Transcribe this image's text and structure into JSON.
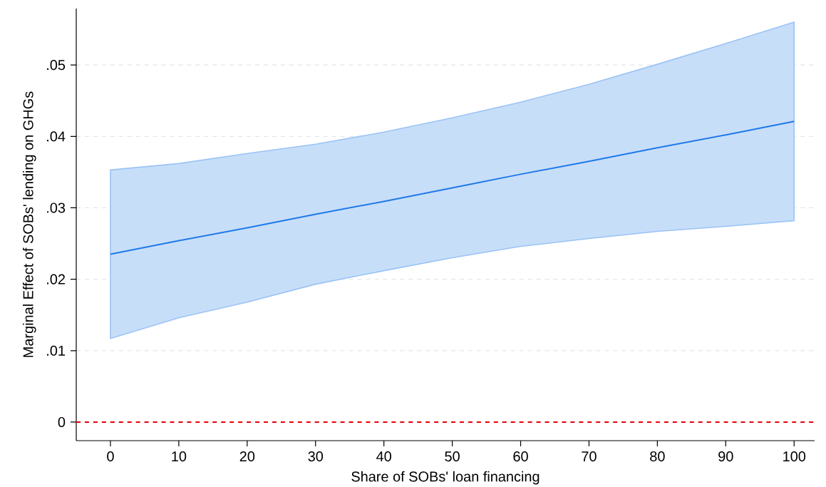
{
  "chart_data": {
    "type": "line",
    "xlabel": "Share of SOBs' loan financing",
    "ylabel": "Marginal Effect of SOBs' lending on GHGs",
    "x": [
      0,
      10,
      20,
      30,
      40,
      50,
      60,
      70,
      80,
      90,
      100
    ],
    "series": [
      {
        "color": "#1f7ae8",
        "values": [
          0.0235,
          0.0254,
          0.0272,
          0.0291,
          0.0309,
          0.0328,
          0.0347,
          0.0365,
          0.0384,
          0.0402,
          0.0421
        ],
        "lower": [
          0.0117,
          0.0146,
          0.0168,
          0.0193,
          0.0212,
          0.023,
          0.0246,
          0.0257,
          0.0267,
          0.0274,
          0.0282
        ],
        "upper": [
          0.0353,
          0.0362,
          0.0376,
          0.0389,
          0.0406,
          0.0426,
          0.0448,
          0.0473,
          0.0501,
          0.053,
          0.056
        ]
      }
    ],
    "xlim": [
      -5,
      103
    ],
    "ylim": [
      -0.0026,
      0.0579
    ],
    "xticks": [
      0,
      10,
      20,
      30,
      40,
      50,
      60,
      70,
      80,
      90,
      100
    ],
    "yticks": [
      0,
      {
        "value": 0.01,
        "label": ".01"
      },
      {
        "value": 0.02,
        "label": ".02"
      },
      {
        "value": 0.03,
        "label": ".03"
      },
      {
        "value": 0.04,
        "label": ".04"
      },
      {
        "value": 0.05,
        "label": ".05"
      }
    ],
    "grid": "y",
    "ref_lines": [
      {
        "axis": "y",
        "value": 0,
        "color": "#e8000b",
        "line_style": "dashed"
      }
    ]
  }
}
